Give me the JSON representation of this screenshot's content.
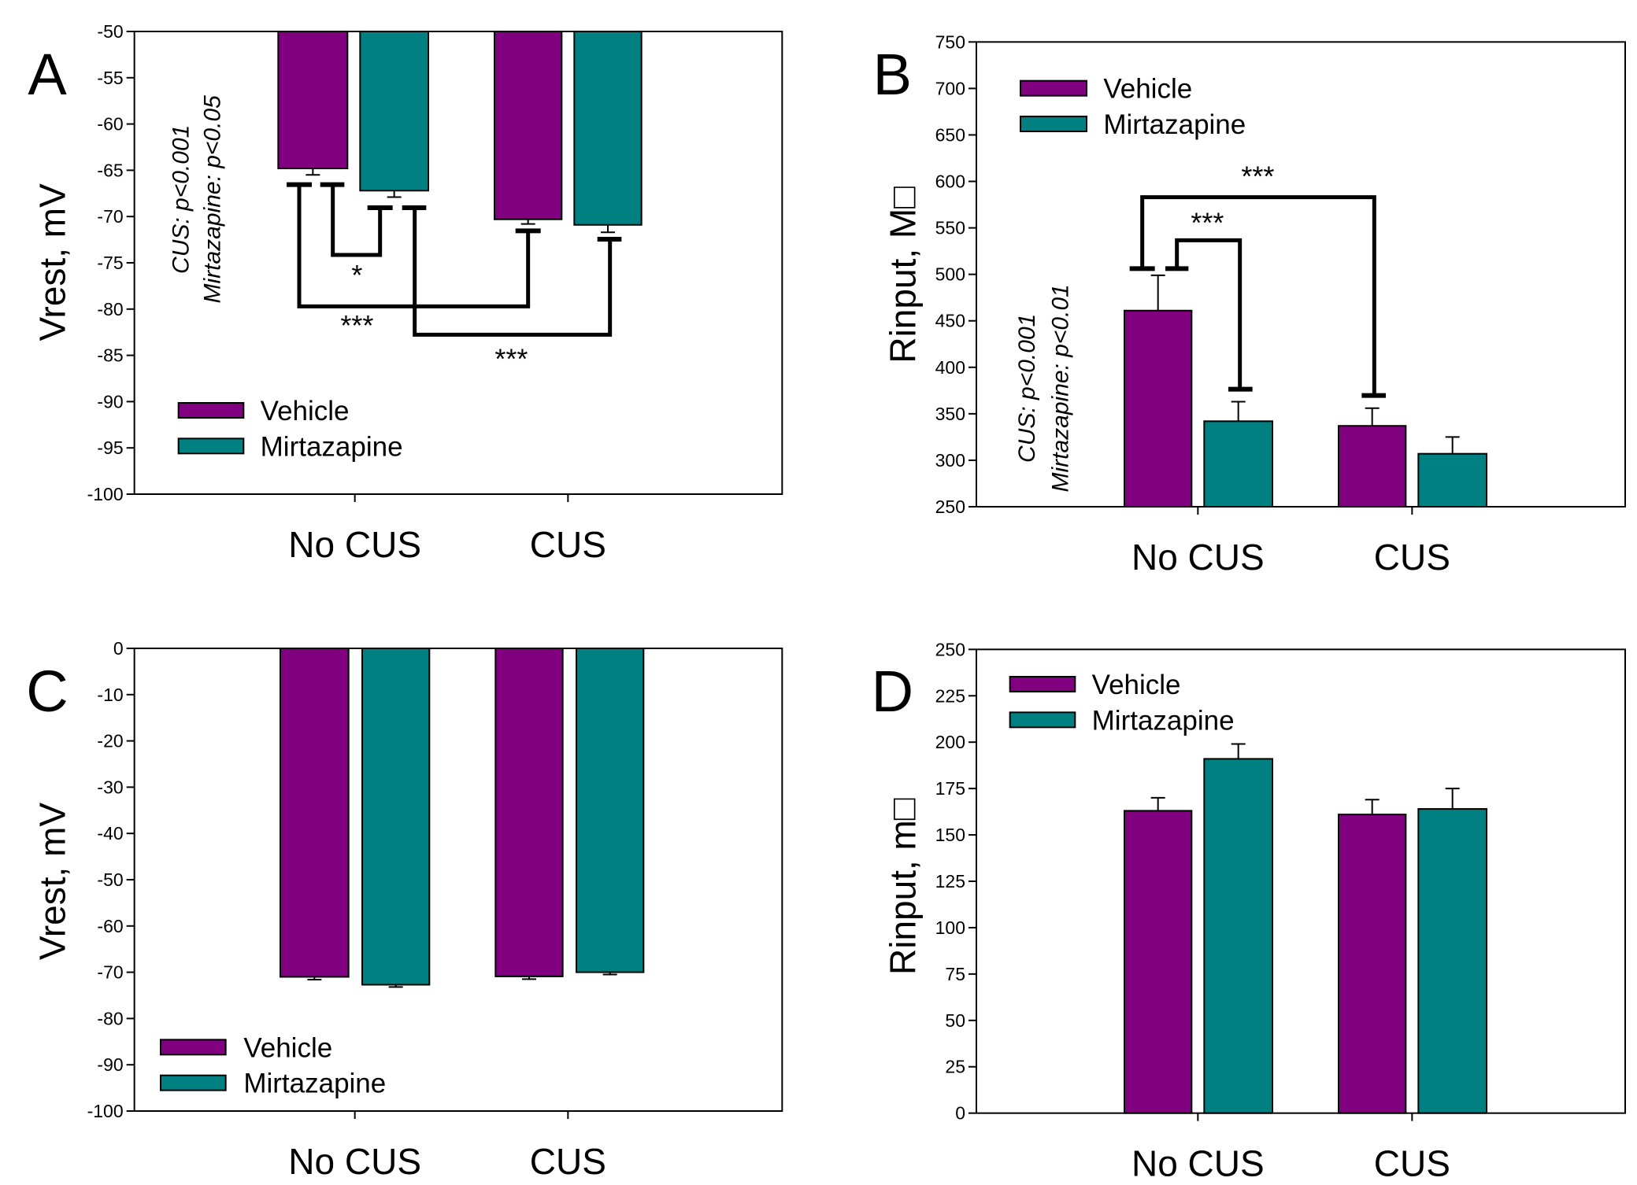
{
  "colors": {
    "vehicle": "#800080",
    "mirtazapine": "#008080",
    "axis": "#000000"
  },
  "chart_data": [
    {
      "panel": "A",
      "type": "bar",
      "categories": [
        "No CUS",
        "CUS"
      ],
      "ylabel": "Vrest, mV",
      "ylim": [
        -100,
        -50
      ],
      "yticks": [
        -50,
        -55,
        -60,
        -65,
        -70,
        -75,
        -80,
        -85,
        -90,
        -95,
        -100
      ],
      "grid": false,
      "legend_placement": "bottom-left",
      "series": [
        {
          "name": "Vehicle",
          "values": [
            -64.8,
            -70.3
          ],
          "errors": [
            0.7,
            0.5
          ]
        },
        {
          "name": "Mirtazapine",
          "values": [
            -67.2,
            -70.9
          ],
          "errors": [
            0.7,
            0.8
          ]
        }
      ],
      "stats_text": [
        "CUS: p<0.001",
        "Mirtazapine: p<0.05"
      ],
      "annotations": [
        {
          "label": "*",
          "between": [
            "No CUS Vehicle",
            "No CUS Mirtazapine"
          ]
        },
        {
          "label": "***",
          "between": [
            "No CUS Vehicle",
            "CUS Vehicle"
          ]
        },
        {
          "label": "***",
          "between": [
            "No CUS Mirtazapine",
            "CUS Mirtazapine"
          ]
        }
      ]
    },
    {
      "panel": "B",
      "type": "bar",
      "categories": [
        "No CUS",
        "CUS"
      ],
      "ylabel": "Rinput, M□",
      "ylim": [
        250,
        750
      ],
      "yticks": [
        250,
        300,
        350,
        400,
        450,
        500,
        550,
        600,
        650,
        700,
        750
      ],
      "grid": false,
      "legend_placement": "top-left",
      "series": [
        {
          "name": "Vehicle",
          "values": [
            461,
            337
          ],
          "errors": [
            38,
            19
          ]
        },
        {
          "name": "Mirtazapine",
          "values": [
            342,
            307
          ],
          "errors": [
            21,
            18
          ]
        }
      ],
      "stats_text": [
        "CUS: p<0.001",
        "Mirtazapine: p<0.01"
      ],
      "annotations": [
        {
          "label": "***",
          "between": [
            "No CUS Vehicle",
            "No CUS Mirtazapine"
          ]
        },
        {
          "label": "***",
          "between": [
            "No CUS Vehicle",
            "CUS Vehicle"
          ]
        }
      ]
    },
    {
      "panel": "C",
      "type": "bar",
      "categories": [
        "No CUS",
        "CUS"
      ],
      "ylabel": "Vrest, mV",
      "ylim": [
        -100,
        0
      ],
      "yticks": [
        0,
        -10,
        -20,
        -30,
        -40,
        -50,
        -60,
        -70,
        -80,
        -90,
        -100
      ],
      "grid": false,
      "legend_placement": "bottom-left",
      "series": [
        {
          "name": "Vehicle",
          "values": [
            -71.0,
            -70.9
          ],
          "errors": [
            0.6,
            0.6
          ]
        },
        {
          "name": "Mirtazapine",
          "values": [
            -72.7,
            -70.0
          ],
          "errors": [
            0.5,
            0.5
          ]
        }
      ]
    },
    {
      "panel": "D",
      "type": "bar",
      "categories": [
        "No CUS",
        "CUS"
      ],
      "ylabel": "Rinput, m□",
      "ylim": [
        0,
        250
      ],
      "yticks": [
        0,
        25,
        50,
        75,
        100,
        125,
        150,
        175,
        200,
        225,
        250
      ],
      "grid": false,
      "legend_placement": "top-left",
      "series": [
        {
          "name": "Vehicle",
          "values": [
            163,
            161
          ],
          "errors": [
            7,
            8
          ]
        },
        {
          "name": "Mirtazapine",
          "values": [
            191,
            164
          ],
          "errors": [
            8,
            11
          ]
        }
      ]
    }
  ]
}
